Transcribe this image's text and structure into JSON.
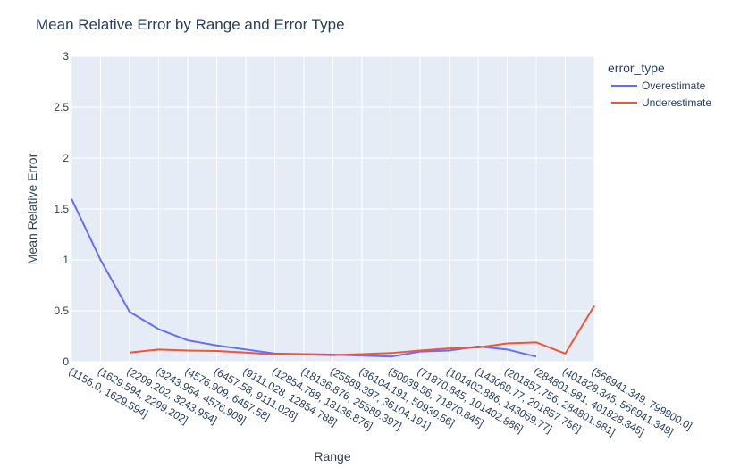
{
  "chart_data": {
    "type": "line",
    "title": "Mean Relative Error by Range and Error Type",
    "xlabel": "Range",
    "ylabel": "Mean Relative Error",
    "ylim": [
      0,
      3
    ],
    "y_ticks": [
      "0",
      "0.5",
      "1",
      "1.5",
      "2",
      "2.5",
      "3"
    ],
    "y_tick_values": [
      0,
      0.5,
      1,
      1.5,
      2,
      2.5,
      3
    ],
    "grid": true,
    "legend_title": "error_type",
    "legend_position": "top-right",
    "background_color": "#e5ecf6",
    "categories": [
      "(1155.0, 1629.594]",
      "(1629.594, 2299.202]",
      "(2299.202, 3243.954]",
      "(3243.954, 4576.909]",
      "(4576.909, 6457.58]",
      "(6457.58, 9111.028]",
      "(9111.028, 12854.788]",
      "(12854.788, 18136.876]",
      "(18136.876, 25589.397]",
      "(25589.397, 36104.191]",
      "(36104.191, 50939.56]",
      "(50939.56, 71870.845]",
      "(71870.845, 101402.886]",
      "(101402.886, 143069.77]",
      "(143069.77, 201857.756]",
      "(201857.756, 284801.981]",
      "(284801.981, 401828.345]",
      "(401828.345, 566941.349]",
      "(566941.349, 799900.0]"
    ],
    "series": [
      {
        "name": "Overestimate",
        "color": "#636efa",
        "values": [
          1.6,
          1.0,
          0.49,
          0.32,
          0.21,
          0.16,
          0.12,
          0.08,
          0.075,
          0.07,
          0.06,
          0.05,
          0.1,
          0.11,
          0.15,
          0.12,
          0.05,
          null,
          null
        ]
      },
      {
        "name": "Underestimate",
        "color": "#ef553b",
        "values": [
          null,
          null,
          0.09,
          0.12,
          0.11,
          0.105,
          0.09,
          0.07,
          0.07,
          0.065,
          0.075,
          0.085,
          0.11,
          0.13,
          0.14,
          0.18,
          0.19,
          0.08,
          0.55
        ]
      }
    ]
  }
}
